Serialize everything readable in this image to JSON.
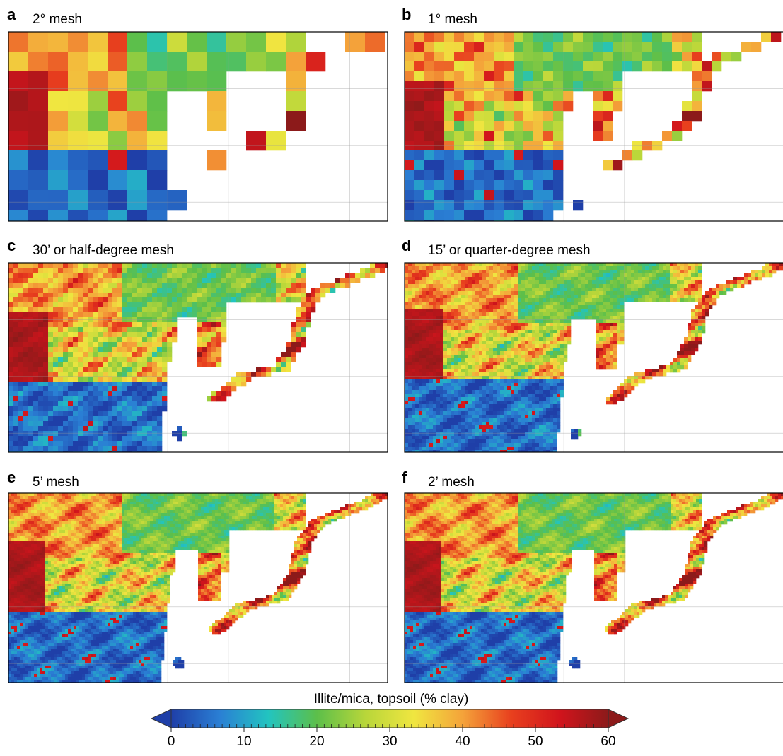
{
  "panels": [
    {
      "letter": "a",
      "title": "2° mesh"
    },
    {
      "letter": "b",
      "title": "1° mesh"
    },
    {
      "letter": "c",
      "title": "30’ or half-degree mesh"
    },
    {
      "letter": "d",
      "title": "15’ or quarter-degree mesh"
    },
    {
      "letter": "e",
      "title": "5’ mesh"
    },
    {
      "letter": "f",
      "title": "2’ mesh"
    }
  ],
  "colorbar": {
    "label": "Illite/mica, topsoil (% clay)",
    "lim": [
      0,
      60
    ],
    "ticks": [
      0,
      10,
      20,
      30,
      40,
      50,
      60
    ],
    "colors": [
      "#1f3fa8",
      "#2a7fd4",
      "#22c4c0",
      "#5cbf4a",
      "#b8d63a",
      "#f0e640",
      "#f4a33a",
      "#e8401e",
      "#d1141c",
      "#8c1a1a"
    ]
  }
}
